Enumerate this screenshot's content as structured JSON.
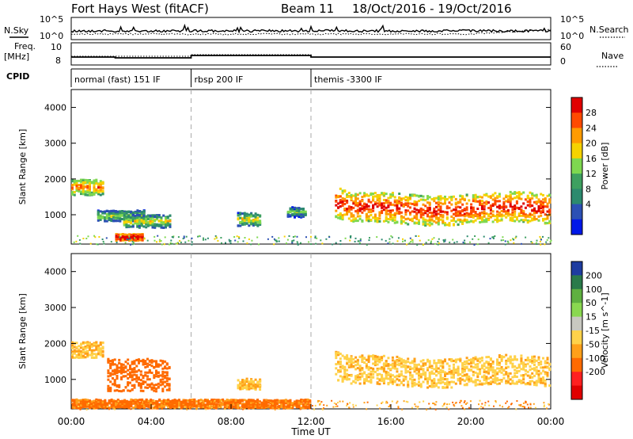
{
  "header": {
    "radar": "Fort Hays West (fitACF)",
    "beam": "Beam 11",
    "dates": "18/Oct/2016 - 19/Oct/2016"
  },
  "top_panels": {
    "nsky_label": "N.Sky",
    "nsky_top": "10^5",
    "nsky_bottom": "10^0",
    "nsearch_label": "N.Search",
    "freq_label": "Freq.",
    "freq_unit": "[MHz]",
    "freq_ticks": [
      "8",
      "10"
    ],
    "nave_label": "Nave",
    "nave_ticks": [
      "60",
      "0"
    ],
    "cpid_label": "CPID"
  },
  "cpid_segments": [
    {
      "label": "normal (fast) 151 IF",
      "start_hour": 0
    },
    {
      "label": "rbsp 200 IF",
      "start_hour": 6
    },
    {
      "label": "themis -3300 IF",
      "start_hour": 12
    }
  ],
  "time_axis": {
    "title": "Time UT",
    "ticks": [
      "00:00",
      "04:00",
      "08:00",
      "12:00",
      "16:00",
      "20:00",
      "00:00"
    ]
  },
  "chart_data": [
    {
      "type": "heatmap",
      "name": "power",
      "ylabel": "Slant Range [km]",
      "ylim": [
        180,
        4500
      ],
      "yticks": [
        "1000",
        "2000",
        "3000",
        "4000"
      ],
      "xlim_hours": [
        0,
        24
      ],
      "colorbar": {
        "title": "Power [dB]",
        "ticks": [
          "28",
          "24",
          "20",
          "16",
          "12",
          "8",
          "4"
        ],
        "colors": [
          "#e00000",
          "#ff4a00",
          "#ff9b00",
          "#f5d200",
          "#7ed850",
          "#3ea060",
          "#2c8a6e",
          "#2c50b4",
          "#0018e8"
        ]
      },
      "echo_regions": [
        {
          "t0": 0.0,
          "t1": 1.6,
          "r_center": 1800,
          "r_half": 220,
          "level": 16
        },
        {
          "t0": 1.3,
          "t1": 3.6,
          "r_center": 1000,
          "r_half": 150,
          "level": 8
        },
        {
          "t0": 2.6,
          "t1": 4.9,
          "r_center": 850,
          "r_half": 180,
          "level": 10
        },
        {
          "t0": 2.2,
          "t1": 3.6,
          "r_center": 400,
          "r_half": 90,
          "level": 26
        },
        {
          "t0": 8.3,
          "t1": 9.4,
          "r_center": 900,
          "r_half": 180,
          "level": 10
        },
        {
          "t0": 10.8,
          "t1": 11.7,
          "r_center": 1100,
          "r_half": 140,
          "level": 6
        },
        {
          "t0": 13.2,
          "t1": 24.0,
          "r_center": 1200,
          "r_half": 420,
          "level": 20
        }
      ]
    },
    {
      "type": "heatmap",
      "name": "velocity",
      "ylabel": "Slant Range [km]",
      "ylim": [
        180,
        4500
      ],
      "yticks": [
        "1000",
        "2000",
        "3000",
        "4000"
      ],
      "xlim_hours": [
        0,
        24
      ],
      "colorbar": {
        "title": "Velocity [m s^-1]",
        "ticks": [
          "200",
          "100",
          "50",
          "15",
          "-15",
          "-50",
          "-100",
          "-200"
        ],
        "colors": [
          "#1e3ca0",
          "#2a7a4a",
          "#5fb040",
          "#8ad850",
          "#c8c8c0",
          "#ffd24a",
          "#ffa01a",
          "#ff6a00",
          "#ff2020",
          "#e00000"
        ]
      },
      "echo_regions": [
        {
          "t0": 0.0,
          "t1": 1.6,
          "r_center": 1850,
          "r_half": 220,
          "vel": -10
        },
        {
          "t0": 1.8,
          "t1": 4.9,
          "r_center": 1150,
          "r_half": 450,
          "vel": -75
        },
        {
          "t0": 8.3,
          "t1": 9.4,
          "r_center": 900,
          "r_half": 150,
          "vel": -10
        },
        {
          "t0": 13.2,
          "t1": 24.0,
          "r_center": 1250,
          "r_half": 400,
          "vel": -5
        },
        {
          "t0": 0.0,
          "t1": 12.0,
          "r_center": 350,
          "r_half": 120,
          "vel": -60
        }
      ]
    }
  ]
}
